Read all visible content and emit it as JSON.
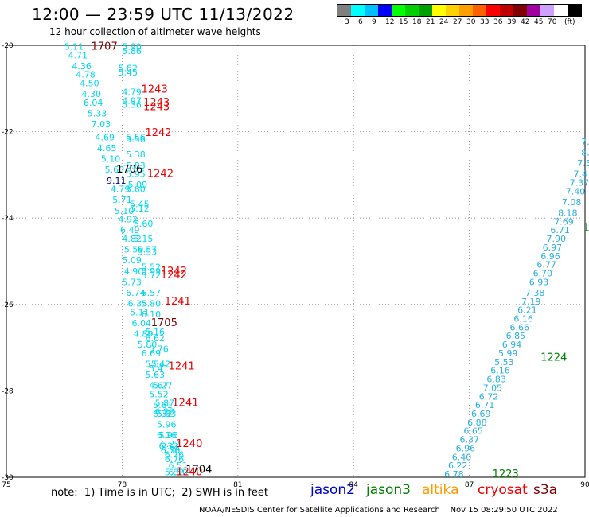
{
  "header": {
    "title": "12:00 — 23:59 UTC 11/13/2022",
    "subtitle": "12 hour collection of altimeter wave heights"
  },
  "legend": {
    "unit": "(ft)",
    "swatches": [
      "#808080",
      "#00ffff",
      "#00c0ff",
      "#0000ff",
      "#00ff00",
      "#00d000",
      "#00a000",
      "#ffff00",
      "#ffd000",
      "#ffa000",
      "#ff6000",
      "#ff0000",
      "#c00000",
      "#800000",
      "#a000a0",
      "#d0a0ff",
      "#ffffff",
      "#000000"
    ],
    "labels": [
      "3",
      "6",
      "9",
      "12",
      "15",
      "18",
      "21",
      "24",
      "27",
      "30",
      "33",
      "36",
      "39",
      "42",
      "45",
      "70"
    ]
  },
  "axes": {
    "x_ticks": [
      "75",
      "78",
      "81",
      "84",
      "87",
      "90"
    ],
    "y_ticks": [
      "-20",
      "-22",
      "-24",
      "-26",
      "-28",
      "-30"
    ]
  },
  "colors": {
    "cyan": "#00d8ee",
    "blue": "#2ab0e0",
    "red": "#ee0000",
    "darkred": "#800000",
    "green": "#008000",
    "navy": "#000080",
    "black": "#000000",
    "orange": "#ff9900",
    "brown": "#800000"
  },
  "map": {
    "lon_range": [
      75,
      90
    ],
    "lat_range": [
      -30,
      -20
    ],
    "labels": [
      {
        "t": "5.11",
        "lon": 76.5,
        "lat": -20.1,
        "c": "cyan"
      },
      {
        "t": "4.71",
        "lon": 76.6,
        "lat": -20.3,
        "c": "cyan"
      },
      {
        "t": "4.36",
        "lon": 76.7,
        "lat": -20.55,
        "c": "cyan"
      },
      {
        "t": "4.78",
        "lon": 76.8,
        "lat": -20.75,
        "c": "cyan"
      },
      {
        "t": "4.50",
        "lon": 76.9,
        "lat": -20.95,
        "c": "cyan"
      },
      {
        "t": "4.30",
        "lon": 76.95,
        "lat": -21.2,
        "c": "cyan"
      },
      {
        "t": "6.04",
        "lon": 77.0,
        "lat": -21.4,
        "c": "cyan"
      },
      {
        "t": "5.33",
        "lon": 77.1,
        "lat": -21.65,
        "c": "cyan"
      },
      {
        "t": "7.03",
        "lon": 77.2,
        "lat": -21.9,
        "c": "cyan"
      },
      {
        "t": "4.69",
        "lon": 77.3,
        "lat": -22.2,
        "c": "cyan"
      },
      {
        "t": "4.65",
        "lon": 77.35,
        "lat": -22.45,
        "c": "cyan"
      },
      {
        "t": "5.10",
        "lon": 77.45,
        "lat": -22.7,
        "c": "cyan"
      },
      {
        "t": "5.60",
        "lon": 77.55,
        "lat": -22.95,
        "c": "cyan"
      },
      {
        "t": "9.11",
        "lon": 77.6,
        "lat": -23.2,
        "c": "navy"
      },
      {
        "t": "4.79",
        "lon": 77.7,
        "lat": -23.4,
        "c": "cyan"
      },
      {
        "t": "5.71",
        "lon": 77.75,
        "lat": -23.65,
        "c": "cyan"
      },
      {
        "t": "5.10",
        "lon": 77.8,
        "lat": -23.9,
        "c": "cyan"
      },
      {
        "t": "4.92",
        "lon": 77.9,
        "lat": -24.1,
        "c": "cyan"
      },
      {
        "t": "6.49",
        "lon": 77.95,
        "lat": -24.35,
        "c": "cyan"
      },
      {
        "t": "4.82",
        "lon": 78.0,
        "lat": -24.55,
        "c": "cyan"
      },
      {
        "t": "5.59",
        "lon": 78.05,
        "lat": -24.8,
        "c": "cyan"
      },
      {
        "t": "5.09",
        "lon": 78.0,
        "lat": -25.05,
        "c": "cyan"
      },
      {
        "t": "4.90",
        "lon": 78.05,
        "lat": -25.3,
        "c": "cyan"
      },
      {
        "t": "5.73",
        "lon": 78.0,
        "lat": -25.55,
        "c": "cyan"
      },
      {
        "t": "6.74",
        "lon": 78.1,
        "lat": -25.8,
        "c": "cyan"
      },
      {
        "t": "6.35",
        "lon": 78.15,
        "lat": -26.05,
        "c": "cyan"
      },
      {
        "t": "5.11",
        "lon": 78.2,
        "lat": -26.25,
        "c": "cyan"
      },
      {
        "t": "6.04",
        "lon": 78.25,
        "lat": -26.5,
        "c": "cyan"
      },
      {
        "t": "4.89",
        "lon": 78.3,
        "lat": -26.75,
        "c": "cyan"
      },
      {
        "t": "5.80",
        "lon": 78.4,
        "lat": -27.0,
        "c": "cyan"
      },
      {
        "t": "6.69",
        "lon": 78.5,
        "lat": -27.2,
        "c": "cyan"
      },
      {
        "t": "5.54",
        "lon": 78.6,
        "lat": -27.45,
        "c": "cyan"
      },
      {
        "t": "5.63",
        "lon": 78.6,
        "lat": -27.7,
        "c": "cyan"
      },
      {
        "t": "4.67",
        "lon": 78.7,
        "lat": -27.95,
        "c": "cyan"
      },
      {
        "t": "5.52",
        "lon": 78.7,
        "lat": -28.15,
        "c": "cyan"
      },
      {
        "t": "5.61",
        "lon": 78.8,
        "lat": -28.4,
        "c": "cyan"
      },
      {
        "t": "6.32",
        "lon": 78.8,
        "lat": -28.6,
        "c": "cyan"
      },
      {
        "t": "5.96",
        "lon": 78.9,
        "lat": -28.85,
        "c": "cyan"
      },
      {
        "t": "6.16",
        "lon": 78.9,
        "lat": -29.1,
        "c": "cyan"
      },
      {
        "t": "6.22",
        "lon": 79.0,
        "lat": -29.3,
        "c": "cyan"
      },
      {
        "t": "6.78",
        "lon": 79.0,
        "lat": -29.45,
        "c": "cyan"
      },
      {
        "t": "6.76",
        "lon": 79.1,
        "lat": -29.55,
        "c": "cyan"
      },
      {
        "t": "6.51",
        "lon": 79.2,
        "lat": -29.8,
        "c": "cyan"
      },
      {
        "t": "5.82",
        "lon": 79.1,
        "lat": -29.95,
        "c": "cyan"
      },
      {
        "t": "5.90",
        "lon": 78.0,
        "lat": -20.1,
        "c": "cyan"
      },
      {
        "t": "5.86",
        "lon": 78.0,
        "lat": -20.2,
        "c": "cyan"
      },
      {
        "t": "5.82",
        "lon": 77.9,
        "lat": -20.6,
        "c": "cyan"
      },
      {
        "t": "5.45",
        "lon": 77.9,
        "lat": -20.7,
        "c": "cyan"
      },
      {
        "t": "4.79",
        "lon": 78.0,
        "lat": -21.15,
        "c": "cyan"
      },
      {
        "t": "4.97",
        "lon": 78.0,
        "lat": -21.35,
        "c": "cyan"
      },
      {
        "t": "5.36",
        "lon": 78.0,
        "lat": -21.45,
        "c": "cyan"
      },
      {
        "t": "5.56",
        "lon": 78.1,
        "lat": -22.2,
        "c": "cyan"
      },
      {
        "t": "5.56",
        "lon": 78.1,
        "lat": -22.25,
        "c": "cyan"
      },
      {
        "t": "5.38",
        "lon": 78.1,
        "lat": -22.6,
        "c": "cyan"
      },
      {
        "t": "5.83",
        "lon": 78.1,
        "lat": -22.85,
        "c": "cyan"
      },
      {
        "t": "5.95",
        "lon": 78.1,
        "lat": -23.05,
        "c": "cyan"
      },
      {
        "t": "5.09",
        "lon": 78.15,
        "lat": -23.3,
        "c": "cyan"
      },
      {
        "t": "5.60",
        "lon": 78.1,
        "lat": -23.4,
        "c": "cyan"
      },
      {
        "t": "5.45",
        "lon": 78.2,
        "lat": -23.75,
        "c": "cyan"
      },
      {
        "t": "5.12",
        "lon": 78.2,
        "lat": -23.85,
        "c": "cyan"
      },
      {
        "t": "5.60",
        "lon": 78.3,
        "lat": -24.2,
        "c": "cyan"
      },
      {
        "t": "5.15",
        "lon": 78.3,
        "lat": -24.55,
        "c": "cyan"
      },
      {
        "t": "5.57",
        "lon": 78.4,
        "lat": -24.8,
        "c": "cyan"
      },
      {
        "t": "5.53",
        "lon": 78.4,
        "lat": -24.85,
        "c": "cyan"
      },
      {
        "t": "5.52",
        "lon": 78.5,
        "lat": -25.2,
        "c": "cyan"
      },
      {
        "t": "5.99",
        "lon": 78.5,
        "lat": -25.3,
        "c": "cyan"
      },
      {
        "t": "5.72",
        "lon": 78.5,
        "lat": -25.4,
        "c": "cyan"
      },
      {
        "t": "5.57",
        "lon": 78.5,
        "lat": -25.8,
        "c": "cyan"
      },
      {
        "t": "5.80",
        "lon": 78.5,
        "lat": -26.05,
        "c": "cyan"
      },
      {
        "t": "6.10",
        "lon": 78.5,
        "lat": -26.3,
        "c": "cyan"
      },
      {
        "t": "5.16",
        "lon": 78.6,
        "lat": -26.7,
        "c": "cyan"
      },
      {
        "t": "6.62",
        "lon": 78.6,
        "lat": -26.85,
        "c": "cyan"
      },
      {
        "t": "5.76",
        "lon": 78.7,
        "lat": -27.1,
        "c": "cyan"
      },
      {
        "t": "5.42",
        "lon": 78.75,
        "lat": -27.45,
        "c": "cyan"
      },
      {
        "t": "5.41",
        "lon": 78.7,
        "lat": -27.55,
        "c": "cyan"
      },
      {
        "t": "5.27",
        "lon": 78.8,
        "lat": -27.95,
        "c": "cyan"
      },
      {
        "t": "5.87",
        "lon": 78.85,
        "lat": -28.35,
        "c": "cyan"
      },
      {
        "t": "6.23",
        "lon": 78.85,
        "lat": -28.55,
        "c": "cyan"
      },
      {
        "t": "5.83",
        "lon": 78.9,
        "lat": -28.6,
        "c": "cyan"
      },
      {
        "t": "5.96",
        "lon": 78.95,
        "lat": -29.1,
        "c": "cyan"
      },
      {
        "t": "6.32",
        "lon": 78.95,
        "lat": -29.35,
        "c": "cyan"
      },
      {
        "t": "6.30",
        "lon": 79.0,
        "lat": -29.45,
        "c": "cyan"
      },
      {
        "t": "6.76",
        "lon": 79.1,
        "lat": -29.65,
        "c": "cyan"
      },
      {
        "t": "6.50",
        "lon": 79.2,
        "lat": -29.95,
        "c": "cyan"
      },
      {
        "t": "1707",
        "lon": 77.2,
        "lat": -20.1,
        "c": "darkred",
        "size": 13
      },
      {
        "t": "1243",
        "lon": 78.5,
        "lat": -21.1,
        "c": "red",
        "size": 13
      },
      {
        "t": "1243",
        "lon": 78.55,
        "lat": -21.4,
        "c": "red",
        "size": 13
      },
      {
        "t": "1243",
        "lon": 78.55,
        "lat": -21.5,
        "c": "red",
        "size": 13
      },
      {
        "t": "1242",
        "lon": 78.6,
        "lat": -22.1,
        "c": "red",
        "size": 13
      },
      {
        "t": "1706",
        "lon": 77.85,
        "lat": -22.95,
        "c": "black",
        "size": 13
      },
      {
        "t": "1242",
        "lon": 78.65,
        "lat": -23.05,
        "c": "red",
        "size": 13
      },
      {
        "t": "1242",
        "lon": 79.0,
        "lat": -25.3,
        "c": "red",
        "size": 13
      },
      {
        "t": "1242",
        "lon": 79.0,
        "lat": -25.4,
        "c": "red",
        "size": 13
      },
      {
        "t": "1241",
        "lon": 79.1,
        "lat": -26.0,
        "c": "red",
        "size": 13
      },
      {
        "t": "1705",
        "lon": 78.75,
        "lat": -26.5,
        "c": "darkred",
        "size": 13
      },
      {
        "t": "1241",
        "lon": 79.2,
        "lat": -27.5,
        "c": "red",
        "size": 13
      },
      {
        "t": "1241",
        "lon": 79.3,
        "lat": -28.35,
        "c": "red",
        "size": 13
      },
      {
        "t": "1240",
        "lon": 79.4,
        "lat": -29.3,
        "c": "red",
        "size": 13
      },
      {
        "t": "1704",
        "lon": 79.65,
        "lat": -29.9,
        "c": "black",
        "size": 13
      },
      {
        "t": "1240",
        "lon": 79.4,
        "lat": -29.95,
        "c": "red",
        "size": 13
      },
      {
        "t": "7.",
        "lon": 89.9,
        "lat": -22.3,
        "c": "blue"
      },
      {
        "t": "8.",
        "lon": 89.9,
        "lat": -22.55,
        "c": "blue"
      },
      {
        "t": "7.5",
        "lon": 89.8,
        "lat": -22.8,
        "c": "blue"
      },
      {
        "t": "7.4",
        "lon": 89.7,
        "lat": -23.05,
        "c": "blue"
      },
      {
        "t": "7.37",
        "lon": 89.6,
        "lat": -23.25,
        "c": "blue"
      },
      {
        "t": "7.40",
        "lon": 89.5,
        "lat": -23.45,
        "c": "blue"
      },
      {
        "t": "7.08",
        "lon": 89.4,
        "lat": -23.7,
        "c": "blue"
      },
      {
        "t": "8.18",
        "lon": 89.3,
        "lat": -23.95,
        "c": "blue"
      },
      {
        "t": "7.69",
        "lon": 89.2,
        "lat": -24.15,
        "c": "blue"
      },
      {
        "t": "6.71",
        "lon": 89.1,
        "lat": -24.35,
        "c": "blue"
      },
      {
        "t": "7.90",
        "lon": 89.0,
        "lat": -24.55,
        "c": "blue"
      },
      {
        "t": "6.97",
        "lon": 88.9,
        "lat": -24.75,
        "c": "blue"
      },
      {
        "t": "6.96",
        "lon": 88.85,
        "lat": -24.95,
        "c": "blue"
      },
      {
        "t": "6.77",
        "lon": 88.75,
        "lat": -25.15,
        "c": "blue"
      },
      {
        "t": "6.70",
        "lon": 88.65,
        "lat": -25.35,
        "c": "blue"
      },
      {
        "t": "6.93",
        "lon": 88.55,
        "lat": -25.55,
        "c": "blue"
      },
      {
        "t": "7.38",
        "lon": 88.45,
        "lat": -25.8,
        "c": "blue"
      },
      {
        "t": "7.19",
        "lon": 88.35,
        "lat": -26.0,
        "c": "blue"
      },
      {
        "t": "6.21",
        "lon": 88.25,
        "lat": -26.2,
        "c": "blue"
      },
      {
        "t": "6.16",
        "lon": 88.15,
        "lat": -26.4,
        "c": "blue"
      },
      {
        "t": "6.66",
        "lon": 88.05,
        "lat": -26.6,
        "c": "blue"
      },
      {
        "t": "6.85",
        "lon": 87.95,
        "lat": -26.8,
        "c": "blue"
      },
      {
        "t": "6.94",
        "lon": 87.85,
        "lat": -27.0,
        "c": "blue"
      },
      {
        "t": "5.99",
        "lon": 87.75,
        "lat": -27.2,
        "c": "blue"
      },
      {
        "t": "5.53",
        "lon": 87.65,
        "lat": -27.4,
        "c": "blue"
      },
      {
        "t": "6.16",
        "lon": 87.55,
        "lat": -27.6,
        "c": "blue"
      },
      {
        "t": "6.83",
        "lon": 87.45,
        "lat": -27.8,
        "c": "blue"
      },
      {
        "t": "7.05",
        "lon": 87.35,
        "lat": -28.0,
        "c": "blue"
      },
      {
        "t": "6.72",
        "lon": 87.25,
        "lat": -28.2,
        "c": "blue"
      },
      {
        "t": "6.71",
        "lon": 87.15,
        "lat": -28.4,
        "c": "blue"
      },
      {
        "t": "6.69",
        "lon": 87.05,
        "lat": -28.6,
        "c": "blue"
      },
      {
        "t": "6.88",
        "lon": 86.95,
        "lat": -28.8,
        "c": "blue"
      },
      {
        "t": "6.65",
        "lon": 86.85,
        "lat": -29.0,
        "c": "blue"
      },
      {
        "t": "6.37",
        "lon": 86.75,
        "lat": -29.2,
        "c": "blue"
      },
      {
        "t": "6.96",
        "lon": 86.65,
        "lat": -29.4,
        "c": "blue"
      },
      {
        "t": "6.40",
        "lon": 86.55,
        "lat": -29.6,
        "c": "blue"
      },
      {
        "t": "6.22",
        "lon": 86.45,
        "lat": -29.8,
        "c": "blue"
      },
      {
        "t": "6.78",
        "lon": 86.35,
        "lat": -30.0,
        "c": "blue"
      },
      {
        "t": "6.55",
        "lon": 86.25,
        "lat": -30.2,
        "c": "blue"
      },
      {
        "t": "6.99",
        "lon": 86.15,
        "lat": -30.4,
        "c": "blue"
      },
      {
        "t": "12",
        "lon": 89.95,
        "lat": -24.3,
        "c": "green",
        "size": 13
      },
      {
        "t": "1224",
        "lon": 88.85,
        "lat": -27.3,
        "c": "green",
        "size": 13
      },
      {
        "t": "1223",
        "lon": 87.6,
        "lat": -30.0,
        "c": "green",
        "size": 13
      }
    ]
  },
  "footer": {
    "note": "note:  1) Time is in UTC;  2) SWH is in feet",
    "satellites": [
      {
        "name": "jason2",
        "color": "#0000cc"
      },
      {
        "name": "jason3",
        "color": "#008000"
      },
      {
        "name": "altika",
        "color": "#ff9900"
      },
      {
        "name": "cryosat",
        "color": "#ee0000"
      },
      {
        "name": "s3a",
        "color": "#800000"
      }
    ],
    "credit": "NOAA/NESDIS Center for Satellite Applications and Research    Nov 15 08:29:50 UTC 2022"
  }
}
